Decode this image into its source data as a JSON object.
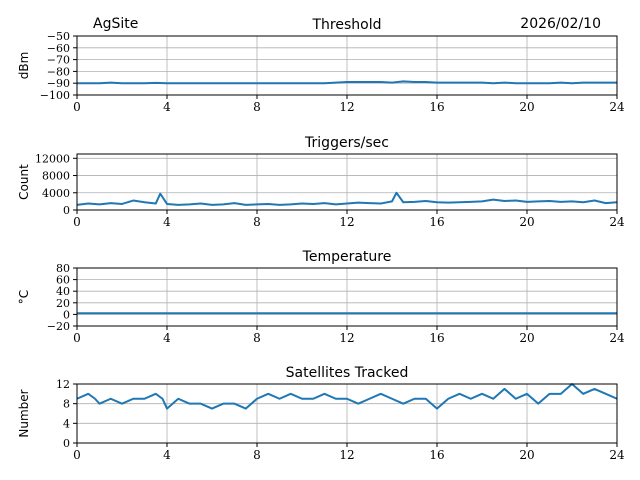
{
  "header": {
    "site": "AgSite",
    "date": "2026/02/10"
  },
  "colors": {
    "line": "#1f77b4",
    "grid": "#b0b0b0",
    "axes": "#000000"
  },
  "chart_data": [
    {
      "type": "line",
      "title": "Threshold",
      "ylabel": "dBm",
      "xlim": [
        0,
        24
      ],
      "ylim": [
        -100,
        -50
      ],
      "xticks": [
        "0",
        "4",
        "8",
        "12",
        "16",
        "20",
        "24"
      ],
      "yticks": [
        "−50",
        "−60",
        "−70",
        "−80",
        "−90",
        "−100"
      ],
      "grid": true,
      "series": [
        {
          "x": [
            0,
            0.5,
            1,
            1.5,
            2,
            2.5,
            3,
            3.5,
            4,
            4.5,
            5,
            5.5,
            6,
            6.5,
            7,
            7.5,
            8,
            8.5,
            9,
            9.5,
            10,
            10.5,
            11,
            11.5,
            12,
            12.5,
            13,
            13.5,
            14,
            14.5,
            15,
            15.5,
            16,
            16.5,
            17,
            17.5,
            18,
            18.5,
            19,
            19.5,
            20,
            20.5,
            21,
            21.5,
            22,
            22.5,
            23,
            23.5,
            24
          ],
          "values": [
            -90,
            -90,
            -90,
            -89.5,
            -90,
            -90,
            -90,
            -89.7,
            -90,
            -90,
            -90,
            -90,
            -90,
            -90,
            -90,
            -90,
            -90,
            -90,
            -90,
            -90,
            -90,
            -90,
            -90,
            -89.5,
            -89,
            -89,
            -89,
            -89,
            -89.5,
            -88.5,
            -89,
            -89,
            -89.5,
            -89.5,
            -89.5,
            -89.5,
            -89.5,
            -90,
            -89.5,
            -90,
            -90,
            -90,
            -90,
            -89.5,
            -90,
            -89.5,
            -89.5,
            -89.5,
            -89.5
          ]
        }
      ]
    },
    {
      "type": "line",
      "title": "Triggers/sec",
      "ylabel": "Count",
      "xlim": [
        0,
        24
      ],
      "ylim": [
        0,
        13000
      ],
      "xticks": [
        "0",
        "4",
        "8",
        "12",
        "16",
        "20",
        "24"
      ],
      "yticks": [
        "0",
        "4000",
        "8000",
        "12000"
      ],
      "grid": true,
      "series": [
        {
          "x": [
            0,
            0.5,
            1,
            1.5,
            2,
            2.5,
            3,
            3.5,
            3.7,
            4,
            4.5,
            5,
            5.5,
            6,
            6.5,
            7,
            7.5,
            8,
            8.5,
            9,
            9.5,
            10,
            10.5,
            11,
            11.5,
            12,
            12.5,
            13,
            13.5,
            14,
            14.2,
            14.5,
            15,
            15.5,
            16,
            16.5,
            17,
            17.5,
            18,
            18.5,
            19,
            19.5,
            20,
            20.5,
            21,
            21.5,
            22,
            22.5,
            23,
            23.5,
            24
          ],
          "values": [
            1200,
            1500,
            1300,
            1600,
            1400,
            2200,
            1800,
            1500,
            3800,
            1400,
            1200,
            1300,
            1500,
            1200,
            1300,
            1600,
            1200,
            1300,
            1400,
            1200,
            1300,
            1500,
            1400,
            1600,
            1300,
            1500,
            1700,
            1600,
            1500,
            2000,
            4000,
            1800,
            1900,
            2100,
            1800,
            1700,
            1800,
            1900,
            2000,
            2400,
            2100,
            2200,
            1900,
            2000,
            2100,
            1900,
            2000,
            1800,
            2200,
            1600,
            1800
          ]
        }
      ]
    },
    {
      "type": "line",
      "title": "Temperature",
      "ylabel": "°C",
      "xlim": [
        0,
        24
      ],
      "ylim": [
        -20,
        80
      ],
      "xticks": [
        "0",
        "4",
        "8",
        "12",
        "16",
        "20",
        "24"
      ],
      "yticks": [
        "−20",
        "0",
        "20",
        "40",
        "60",
        "80"
      ],
      "grid": true,
      "series": [
        {
          "x": [
            0,
            4,
            8,
            12,
            16,
            20,
            24
          ],
          "values": [
            2,
            2,
            2,
            2,
            2,
            2,
            2
          ]
        }
      ]
    },
    {
      "type": "line",
      "title": "Satellites Tracked",
      "ylabel": "Number",
      "xlim": [
        0,
        24
      ],
      "ylim": [
        0,
        12
      ],
      "xticks": [
        "0",
        "4",
        "8",
        "12",
        "16",
        "20",
        "24"
      ],
      "yticks": [
        "0",
        "4",
        "8",
        "12"
      ],
      "grid": true,
      "series": [
        {
          "x": [
            0,
            0.5,
            0.8,
            1,
            1.5,
            2,
            2.5,
            3,
            3.5,
            3.8,
            4,
            4.5,
            5,
            5.5,
            6,
            6.5,
            7,
            7.5,
            8,
            8.5,
            9,
            9.5,
            10,
            10.5,
            11,
            11.5,
            12,
            12.5,
            13,
            13.5,
            14,
            14.5,
            15,
            15.5,
            16,
            16.5,
            17,
            17.5,
            18,
            18.5,
            19,
            19.5,
            20,
            20.5,
            21,
            21.5,
            22,
            22.5,
            23,
            23.5,
            24
          ],
          "values": [
            9,
            10,
            9,
            8,
            9,
            8,
            9,
            9,
            10,
            9,
            7,
            9,
            8,
            8,
            7,
            8,
            8,
            7,
            9,
            10,
            9,
            10,
            9,
            9,
            10,
            9,
            9,
            8,
            9,
            10,
            9,
            8,
            9,
            9,
            7,
            9,
            10,
            9,
            10,
            9,
            11,
            9,
            10,
            8,
            10,
            10,
            12,
            10,
            11,
            10,
            9
          ]
        }
      ]
    }
  ]
}
